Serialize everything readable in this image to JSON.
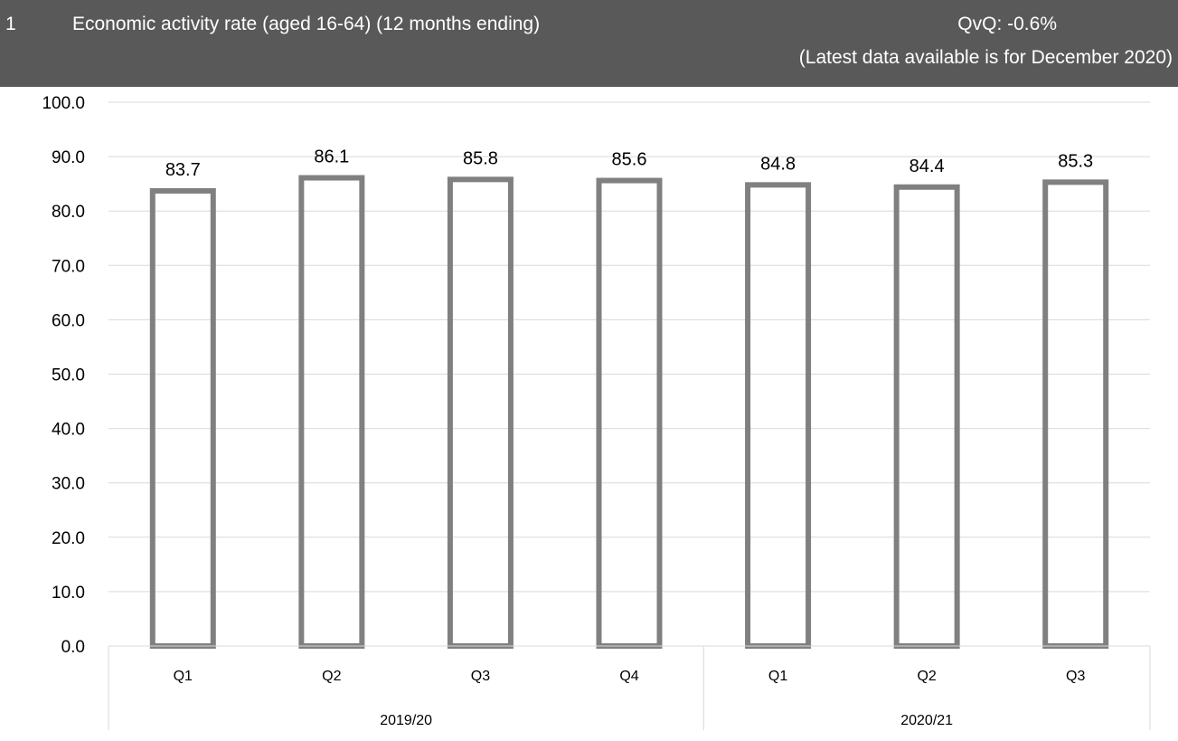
{
  "header": {
    "index": "1",
    "title": "Economic activity rate (aged 16-64) (12 months ending)",
    "qvq": "QvQ: -0.6%",
    "latest": "(Latest data available is for December 2020)"
  },
  "colors": {
    "header_bg": "#595959",
    "header_text": "#ffffff",
    "bar_outline": "#808080",
    "gridline": "#d9d9d9"
  },
  "chart_data": {
    "type": "bar",
    "categories": [
      "Q1",
      "Q2",
      "Q3",
      "Q4",
      "Q1",
      "Q2",
      "Q3"
    ],
    "groups": [
      {
        "label": "2019/20",
        "count": 4
      },
      {
        "label": "2020/21",
        "count": 3
      }
    ],
    "values": [
      83.7,
      86.1,
      85.8,
      85.6,
      84.8,
      84.4,
      85.3
    ],
    "data_labels": [
      "83.7",
      "86.1",
      "85.8",
      "85.6",
      "84.8",
      "84.4",
      "85.3"
    ],
    "y_ticks": [
      "0.0",
      "10.0",
      "20.0",
      "30.0",
      "40.0",
      "50.0",
      "60.0",
      "70.0",
      "80.0",
      "90.0",
      "100.0"
    ],
    "ylim": [
      0,
      100
    ],
    "grid": true,
    "bar_style": "outline"
  }
}
